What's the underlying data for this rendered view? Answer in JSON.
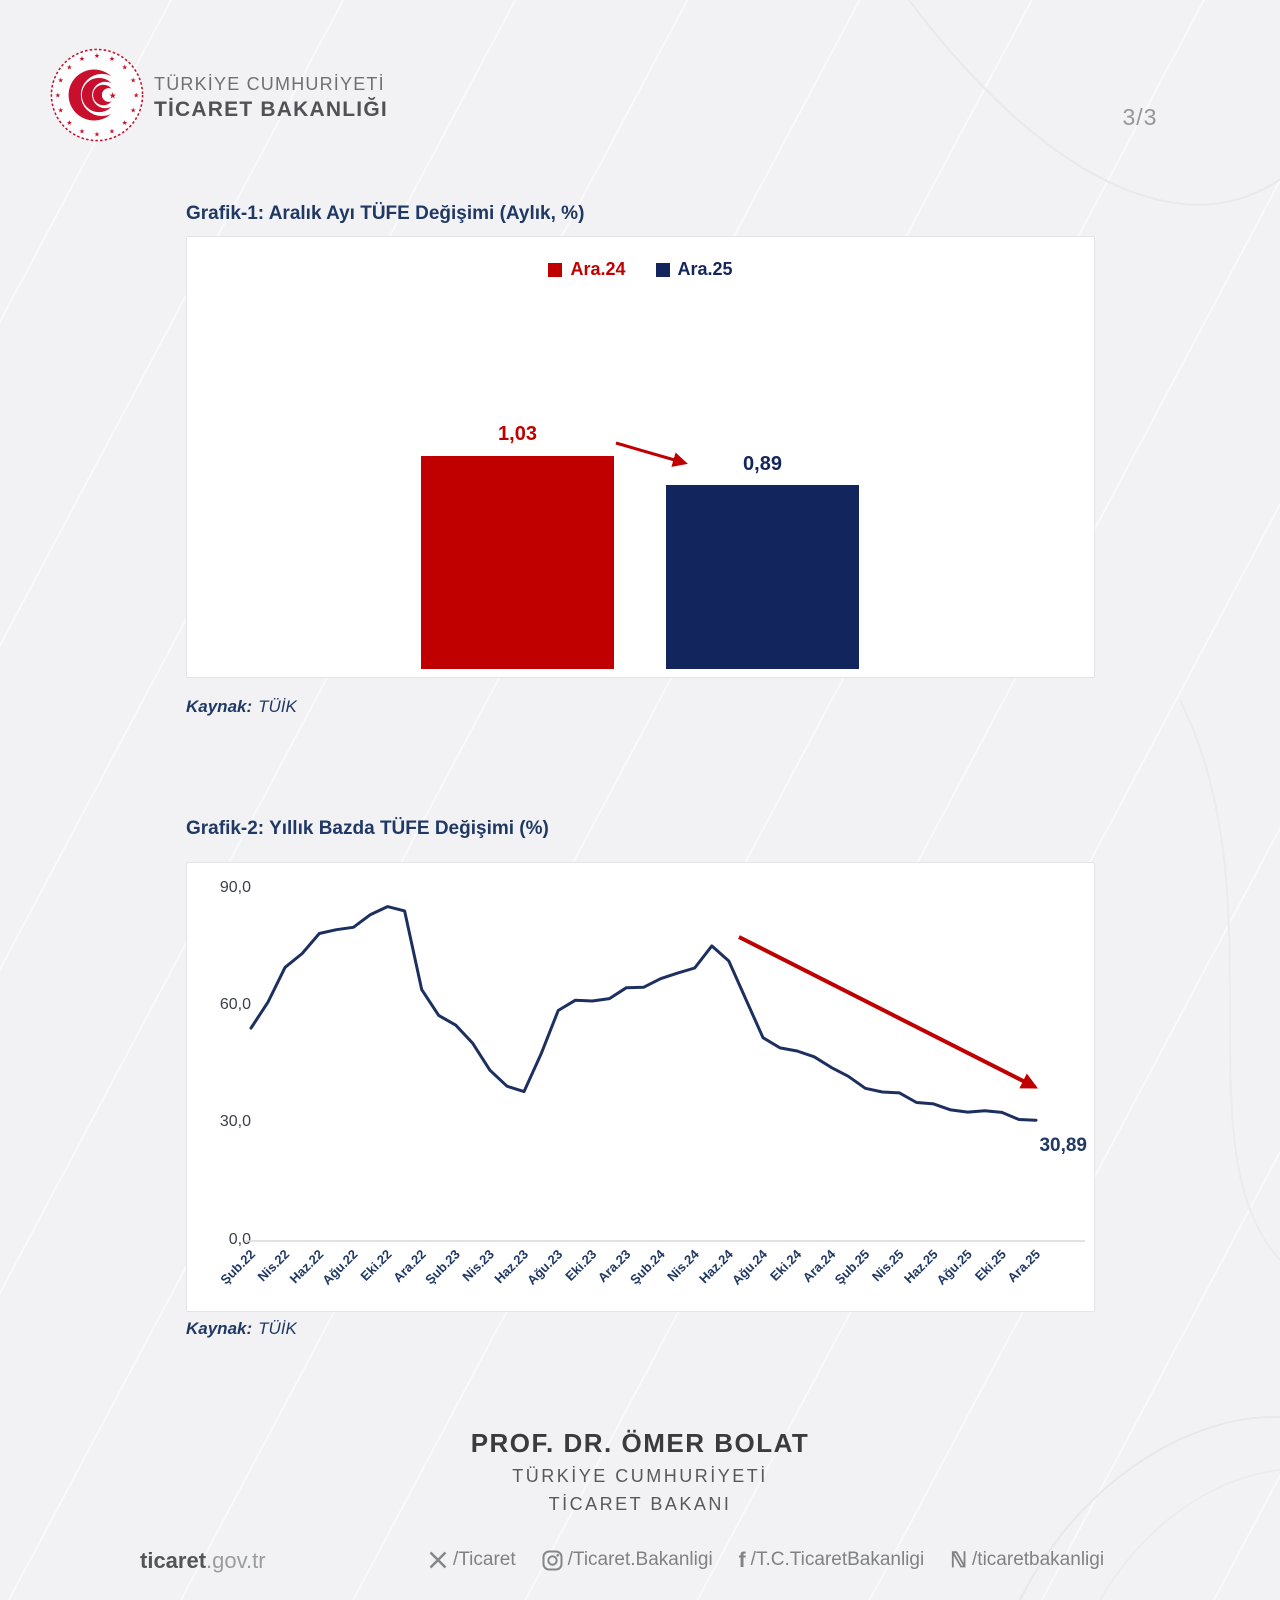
{
  "page_number": "3/3",
  "header": {
    "line1": "TÜRKİYE CUMHURİYETİ",
    "line2": "TİCARET BAKANLIĞI",
    "logo": "ticaret-bakanligi-emblem"
  },
  "source": {
    "label": "Kaynak:",
    "value": "TÜİK"
  },
  "chart_data": [
    {
      "type": "bar",
      "title": "Grafik-1: Aralık Ayı TÜFE Değişimi (Aylık, %)",
      "categories": [
        "Ara.24",
        "Ara.25"
      ],
      "values": [
        1.03,
        0.89
      ],
      "value_labels": [
        "1,03",
        "0,89"
      ],
      "legend": [
        "Ara.24",
        "Ara.25"
      ],
      "legend_position": "top-center",
      "colors": [
        "#c00000",
        "#12255c"
      ],
      "annotation": "red arrow pointing down-right from Ara.24 bar to Ara.25 bar",
      "ylim": [
        0,
        1.2
      ],
      "axes_hidden": true,
      "source": "Kaynak: TÜİK"
    },
    {
      "type": "line",
      "title": "Grafik-2: Yıllık Bazda TÜFE Değişimi (%)",
      "frequency": "monthly, Şub.22 – Ara.25",
      "x_tick_labels": [
        "Şub.22",
        "Nis.22",
        "Haz.22",
        "Ağu.22",
        "Eki.22",
        "Ara.22",
        "Şub.23",
        "Nis.23",
        "Haz.23",
        "Ağu.23",
        "Eki.23",
        "Ara.23",
        "Şub.24",
        "Nis.24",
        "Haz.24",
        "Ağu.24",
        "Eki.24",
        "Ara.24",
        "Şub.25",
        "Nis.25",
        "Haz.25",
        "Ağu.25",
        "Eki.25",
        "Ara.25"
      ],
      "values": [
        54.44,
        61.14,
        69.97,
        73.5,
        78.62,
        79.6,
        80.21,
        83.45,
        85.51,
        84.39,
        64.27,
        57.68,
        55.18,
        50.51,
        43.68,
        39.59,
        38.21,
        47.83,
        58.94,
        61.53,
        61.36,
        61.98,
        64.77,
        64.86,
        67.07,
        68.5,
        69.8,
        75.45,
        71.6,
        61.78,
        51.97,
        49.38,
        48.58,
        47.09,
        44.38,
        42.12,
        39.05,
        38.1,
        37.86,
        35.41,
        35.05,
        33.52,
        32.95,
        33.29,
        32.87,
        31.07,
        30.89
      ],
      "y_tick_labels": [
        "90,0",
        "60,0",
        "30,0",
        "0,0"
      ],
      "ylim": [
        0,
        90
      ],
      "grid": "baseline only",
      "line_color": "#1c2f5f",
      "end_label": "30,89",
      "annotation": "red trend arrow from mid-2024 peak down to Ara.25",
      "source": "Kaynak: TÜİK"
    }
  ],
  "minister": {
    "name": "PROF. DR. ÖMER BOLAT",
    "line2": "TÜRKİYE CUMHURİYETİ",
    "line3": "TİCARET BAKANI"
  },
  "footer": {
    "site_bold": "ticaret",
    "site_rest": ".gov.tr",
    "socials": [
      {
        "icon": "x-icon",
        "handle": "/Ticaret"
      },
      {
        "icon": "instagram-icon",
        "handle": "/Ticaret.Bakanligi"
      },
      {
        "icon": "facebook-icon",
        "handle": "/T.C.TicaretBakanligi"
      },
      {
        "icon": "nsosyal-icon",
        "handle": "/ticaretbakanligi"
      }
    ]
  },
  "colors": {
    "accent_red": "#c00000",
    "accent_navy": "#12255c",
    "title_navy": "#1f3864",
    "line_navy": "#1c2f5f",
    "page_background": "#f2f2f4"
  }
}
